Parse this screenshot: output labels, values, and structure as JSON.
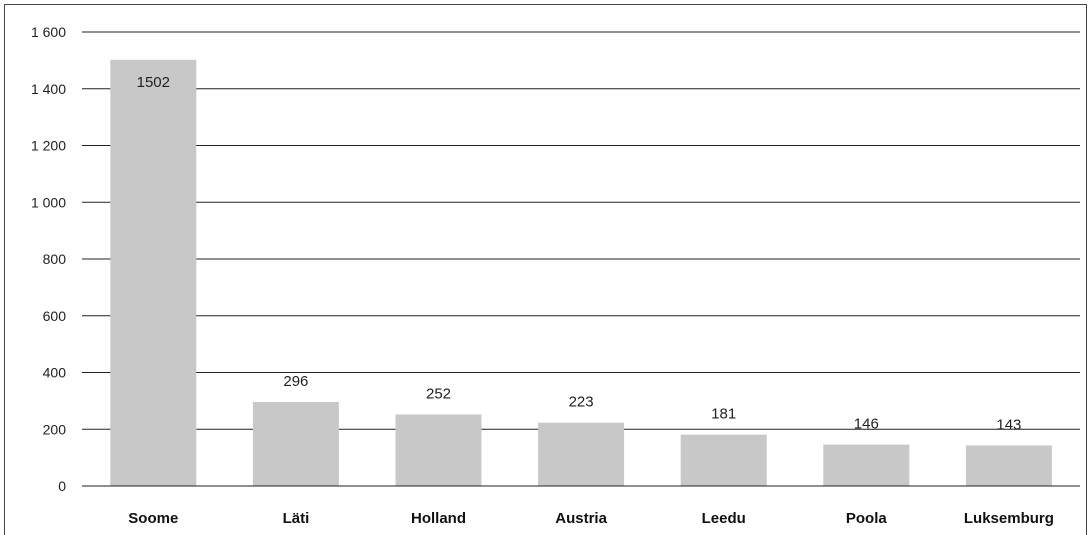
{
  "chart_data": {
    "type": "bar",
    "categories": [
      "Soome",
      "Läti",
      "Holland",
      "Austria",
      "Leedu",
      "Poola",
      "Luksemburg"
    ],
    "values": [
      1502,
      296,
      252,
      223,
      181,
      146,
      143
    ],
    "data_labels": [
      "1502",
      "296",
      "252",
      "223",
      "181",
      "146",
      "143"
    ],
    "y_tick_values": [
      0,
      200,
      400,
      600,
      800,
      1000,
      1200,
      1400,
      1600
    ],
    "y_tick_labels": [
      "0",
      "200",
      "400",
      "600",
      "800",
      "1 000",
      "1 200",
      "1 400",
      "1 600"
    ],
    "ylim": [
      0,
      1600
    ],
    "grid": true,
    "legend": "none",
    "title": "",
    "xlabel": "",
    "ylabel": "",
    "colors": {
      "bar": "#c8c8c8",
      "grid": "#222222",
      "text": "#222222"
    }
  }
}
